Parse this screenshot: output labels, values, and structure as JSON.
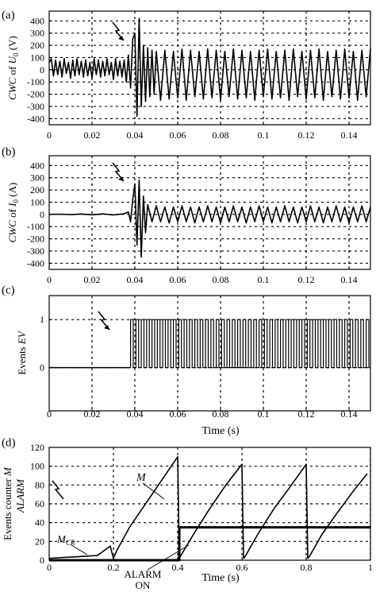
{
  "chart_data": [
    {
      "panel_label": "(a)",
      "type": "line",
      "ylabel_prefix": "CWC",
      "ylabel_suffix": " of ",
      "ylabel_var": "U",
      "ylabel_sub": "0",
      "ylabel_unit": " (V)",
      "xlim": [
        0,
        0.15
      ],
      "ylim": [
        -450,
        480
      ],
      "xticks": [
        "0",
        "0.02",
        "0.04",
        "0.06",
        "0.08",
        "0.1",
        "0.12",
        "0.14"
      ],
      "xtick_values": [
        0,
        0.02,
        0.04,
        0.06,
        0.08,
        0.1,
        0.12,
        0.14
      ],
      "yticks": [
        "400",
        "300",
        "200",
        "100",
        "0",
        "-100",
        "-200",
        "-300",
        "-400"
      ],
      "ytick_values": [
        400,
        300,
        200,
        100,
        0,
        -100,
        -200,
        -300,
        -400
      ],
      "grid": true,
      "series": [
        {
          "x": [
            0,
            0.001,
            0.002,
            0.003,
            0.004,
            0.005,
            0.006,
            0.007,
            0.008,
            0.009,
            0.01,
            0.011,
            0.012,
            0.013,
            0.014,
            0.015,
            0.016,
            0.017,
            0.018,
            0.019,
            0.02,
            0.021,
            0.022,
            0.023,
            0.024,
            0.025,
            0.026,
            0.027,
            0.028,
            0.029,
            0.03,
            0.031,
            0.032,
            0.033,
            0.034,
            0.035,
            0.036,
            0.037,
            0.038,
            0.039,
            0.04,
            0.041,
            0.042,
            0.043,
            0.044,
            0.045,
            0.046,
            0.047,
            0.048,
            0.049,
            0.05,
            0.052,
            0.054,
            0.056,
            0.058,
            0.06,
            0.062,
            0.064,
            0.066,
            0.068,
            0.07,
            0.072,
            0.074,
            0.076,
            0.078,
            0.08,
            0.082,
            0.084,
            0.086,
            0.088,
            0.09,
            0.092,
            0.094,
            0.096,
            0.098,
            0.1,
            0.102,
            0.104,
            0.106,
            0.108,
            0.11,
            0.112,
            0.114,
            0.116,
            0.118,
            0.12,
            0.122,
            0.124,
            0.126,
            0.128,
            0.13,
            0.132,
            0.134,
            0.136,
            0.138,
            0.14,
            0.142,
            0.144,
            0.146,
            0.148,
            0.15
          ],
          "y": [
            60,
            90,
            -50,
            80,
            -40,
            70,
            -60,
            90,
            -30,
            60,
            -70,
            80,
            -50,
            90,
            -40,
            70,
            -60,
            80,
            -50,
            60,
            -70,
            90,
            -40,
            80,
            -60,
            70,
            -50,
            90,
            -40,
            60,
            -80,
            90,
            -50,
            70,
            -60,
            80,
            -100,
            120,
            -150,
            250,
            300,
            -380,
            420,
            -300,
            200,
            -260,
            180,
            -220,
            160,
            -200,
            150,
            -250,
            160,
            -240,
            150,
            -230,
            170,
            -250,
            160,
            -220,
            150,
            -240,
            170,
            -230,
            160,
            -250,
            150,
            -220,
            170,
            -240,
            160,
            -230,
            150,
            -250,
            160,
            -220,
            170,
            -240,
            150,
            -230,
            160,
            -250,
            170,
            -220,
            150,
            -240,
            160,
            -230,
            170,
            -250,
            150,
            -220,
            160,
            -240,
            170,
            -230,
            150,
            -250,
            160,
            -220,
            170
          ]
        }
      ]
    },
    {
      "panel_label": "(b)",
      "type": "line",
      "ylabel_prefix": "CWC",
      "ylabel_suffix": " of ",
      "ylabel_var": "I",
      "ylabel_sub": "0",
      "ylabel_unit": " (A)",
      "xlim": [
        0,
        0.15
      ],
      "ylim": [
        -450,
        480
      ],
      "xticks": [
        "0",
        "0.02",
        "0.04",
        "0.06",
        "0.08",
        "0.1",
        "0.12",
        "0.14"
      ],
      "xtick_values": [
        0,
        0.02,
        0.04,
        0.06,
        0.08,
        0.1,
        0.12,
        0.14
      ],
      "yticks": [
        "400",
        "300",
        "200",
        "100",
        "0",
        "-100",
        "-200",
        "-300",
        "-400"
      ],
      "ytick_values": [
        400,
        300,
        200,
        100,
        0,
        -100,
        -200,
        -300,
        -400
      ],
      "grid": true,
      "series": [
        {
          "x": [
            0,
            0.005,
            0.01,
            0.015,
            0.02,
            0.025,
            0.03,
            0.035,
            0.037,
            0.038,
            0.039,
            0.04,
            0.041,
            0.042,
            0.043,
            0.044,
            0.045,
            0.046,
            0.048,
            0.05,
            0.052,
            0.054,
            0.056,
            0.058,
            0.06,
            0.062,
            0.064,
            0.066,
            0.068,
            0.07,
            0.072,
            0.074,
            0.076,
            0.078,
            0.08,
            0.082,
            0.084,
            0.086,
            0.088,
            0.09,
            0.092,
            0.094,
            0.096,
            0.098,
            0.1,
            0.102,
            0.104,
            0.106,
            0.108,
            0.11,
            0.112,
            0.114,
            0.116,
            0.118,
            0.12,
            0.122,
            0.124,
            0.126,
            0.128,
            0.13,
            0.132,
            0.134,
            0.136,
            0.138,
            0.14,
            0.142,
            0.144,
            0.146,
            0.148,
            0.15
          ],
          "y": [
            0,
            2,
            -2,
            3,
            -3,
            4,
            -4,
            5,
            20,
            -60,
            120,
            250,
            -250,
            280,
            -350,
            150,
            -150,
            80,
            -60,
            70,
            -60,
            60,
            -70,
            60,
            -60,
            70,
            -60,
            60,
            -70,
            60,
            -60,
            70,
            -60,
            60,
            -70,
            60,
            -60,
            70,
            -60,
            60,
            -70,
            60,
            -60,
            70,
            -60,
            60,
            -70,
            60,
            -60,
            70,
            -60,
            60,
            -70,
            60,
            -60,
            70,
            -60,
            60,
            -70,
            60,
            -60,
            70,
            -60,
            60,
            -70,
            60,
            -60,
            70,
            -60,
            60
          ]
        }
      ]
    },
    {
      "panel_label": "(c)",
      "type": "line",
      "ylabel": "Events EV",
      "xlabel": "Time (s)",
      "xlim": [
        0,
        0.15
      ],
      "ylim": [
        -0.9,
        1.5
      ],
      "xticks": [
        "0",
        "0.02",
        "0.04",
        "0.06",
        "0.08",
        "0.1",
        "0.12",
        "0.14"
      ],
      "xtick_values": [
        0,
        0.02,
        0.04,
        0.06,
        0.08,
        0.1,
        0.12,
        0.14
      ],
      "yticks": [
        "1",
        "0"
      ],
      "ytick_values": [
        1,
        0
      ],
      "grid": true,
      "pulse_start": 0.038,
      "pulse_end": 0.15,
      "pulse_period": 0.0025,
      "series": [
        {
          "x": [
            0,
            0.038
          ],
          "y": [
            0,
            0
          ]
        }
      ]
    },
    {
      "panel_label": "(d)",
      "type": "line",
      "ylabel": "Events counter M",
      "ylabel2": "ALARM",
      "xlabel": "Time (s)",
      "xlim": [
        0,
        1
      ],
      "ylim": [
        0,
        120
      ],
      "xticks": [
        "0",
        "0.2",
        "0.4",
        "0.6",
        "0.8",
        "1"
      ],
      "xtick_values": [
        0,
        0.2,
        0.4,
        0.6,
        0.8,
        1
      ],
      "yticks": [
        "120",
        "100",
        "80",
        "60",
        "40",
        "20",
        "0"
      ],
      "ytick_values": [
        120,
        100,
        80,
        60,
        40,
        20,
        0
      ],
      "grid": true,
      "annotations": {
        "M": "M",
        "MCR_main": "M",
        "MCR_sub": "CR",
        "alarm_line1": "ALARM",
        "alarm_line2": "ON"
      },
      "series": [
        {
          "name": "M",
          "x": [
            0,
            0.05,
            0.1,
            0.15,
            0.19,
            0.2,
            0.21,
            0.25,
            0.3,
            0.35,
            0.4,
            0.405,
            0.41,
            0.45,
            0.5,
            0.55,
            0.6,
            0.605,
            0.61,
            0.65,
            0.7,
            0.75,
            0.8,
            0.805,
            0.81,
            0.85,
            0.9,
            0.95,
            0.99
          ],
          "y": [
            2,
            3,
            4,
            5,
            15,
            2,
            10,
            35,
            60,
            85,
            110,
            2,
            5,
            28,
            55,
            80,
            102,
            2,
            4,
            28,
            55,
            78,
            102,
            2,
            4,
            28,
            52,
            75,
            92
          ]
        },
        {
          "name": "ALARM",
          "x": [
            0,
            0.405,
            0.405,
            1
          ],
          "y": [
            0,
            0,
            35,
            35
          ]
        }
      ]
    }
  ]
}
